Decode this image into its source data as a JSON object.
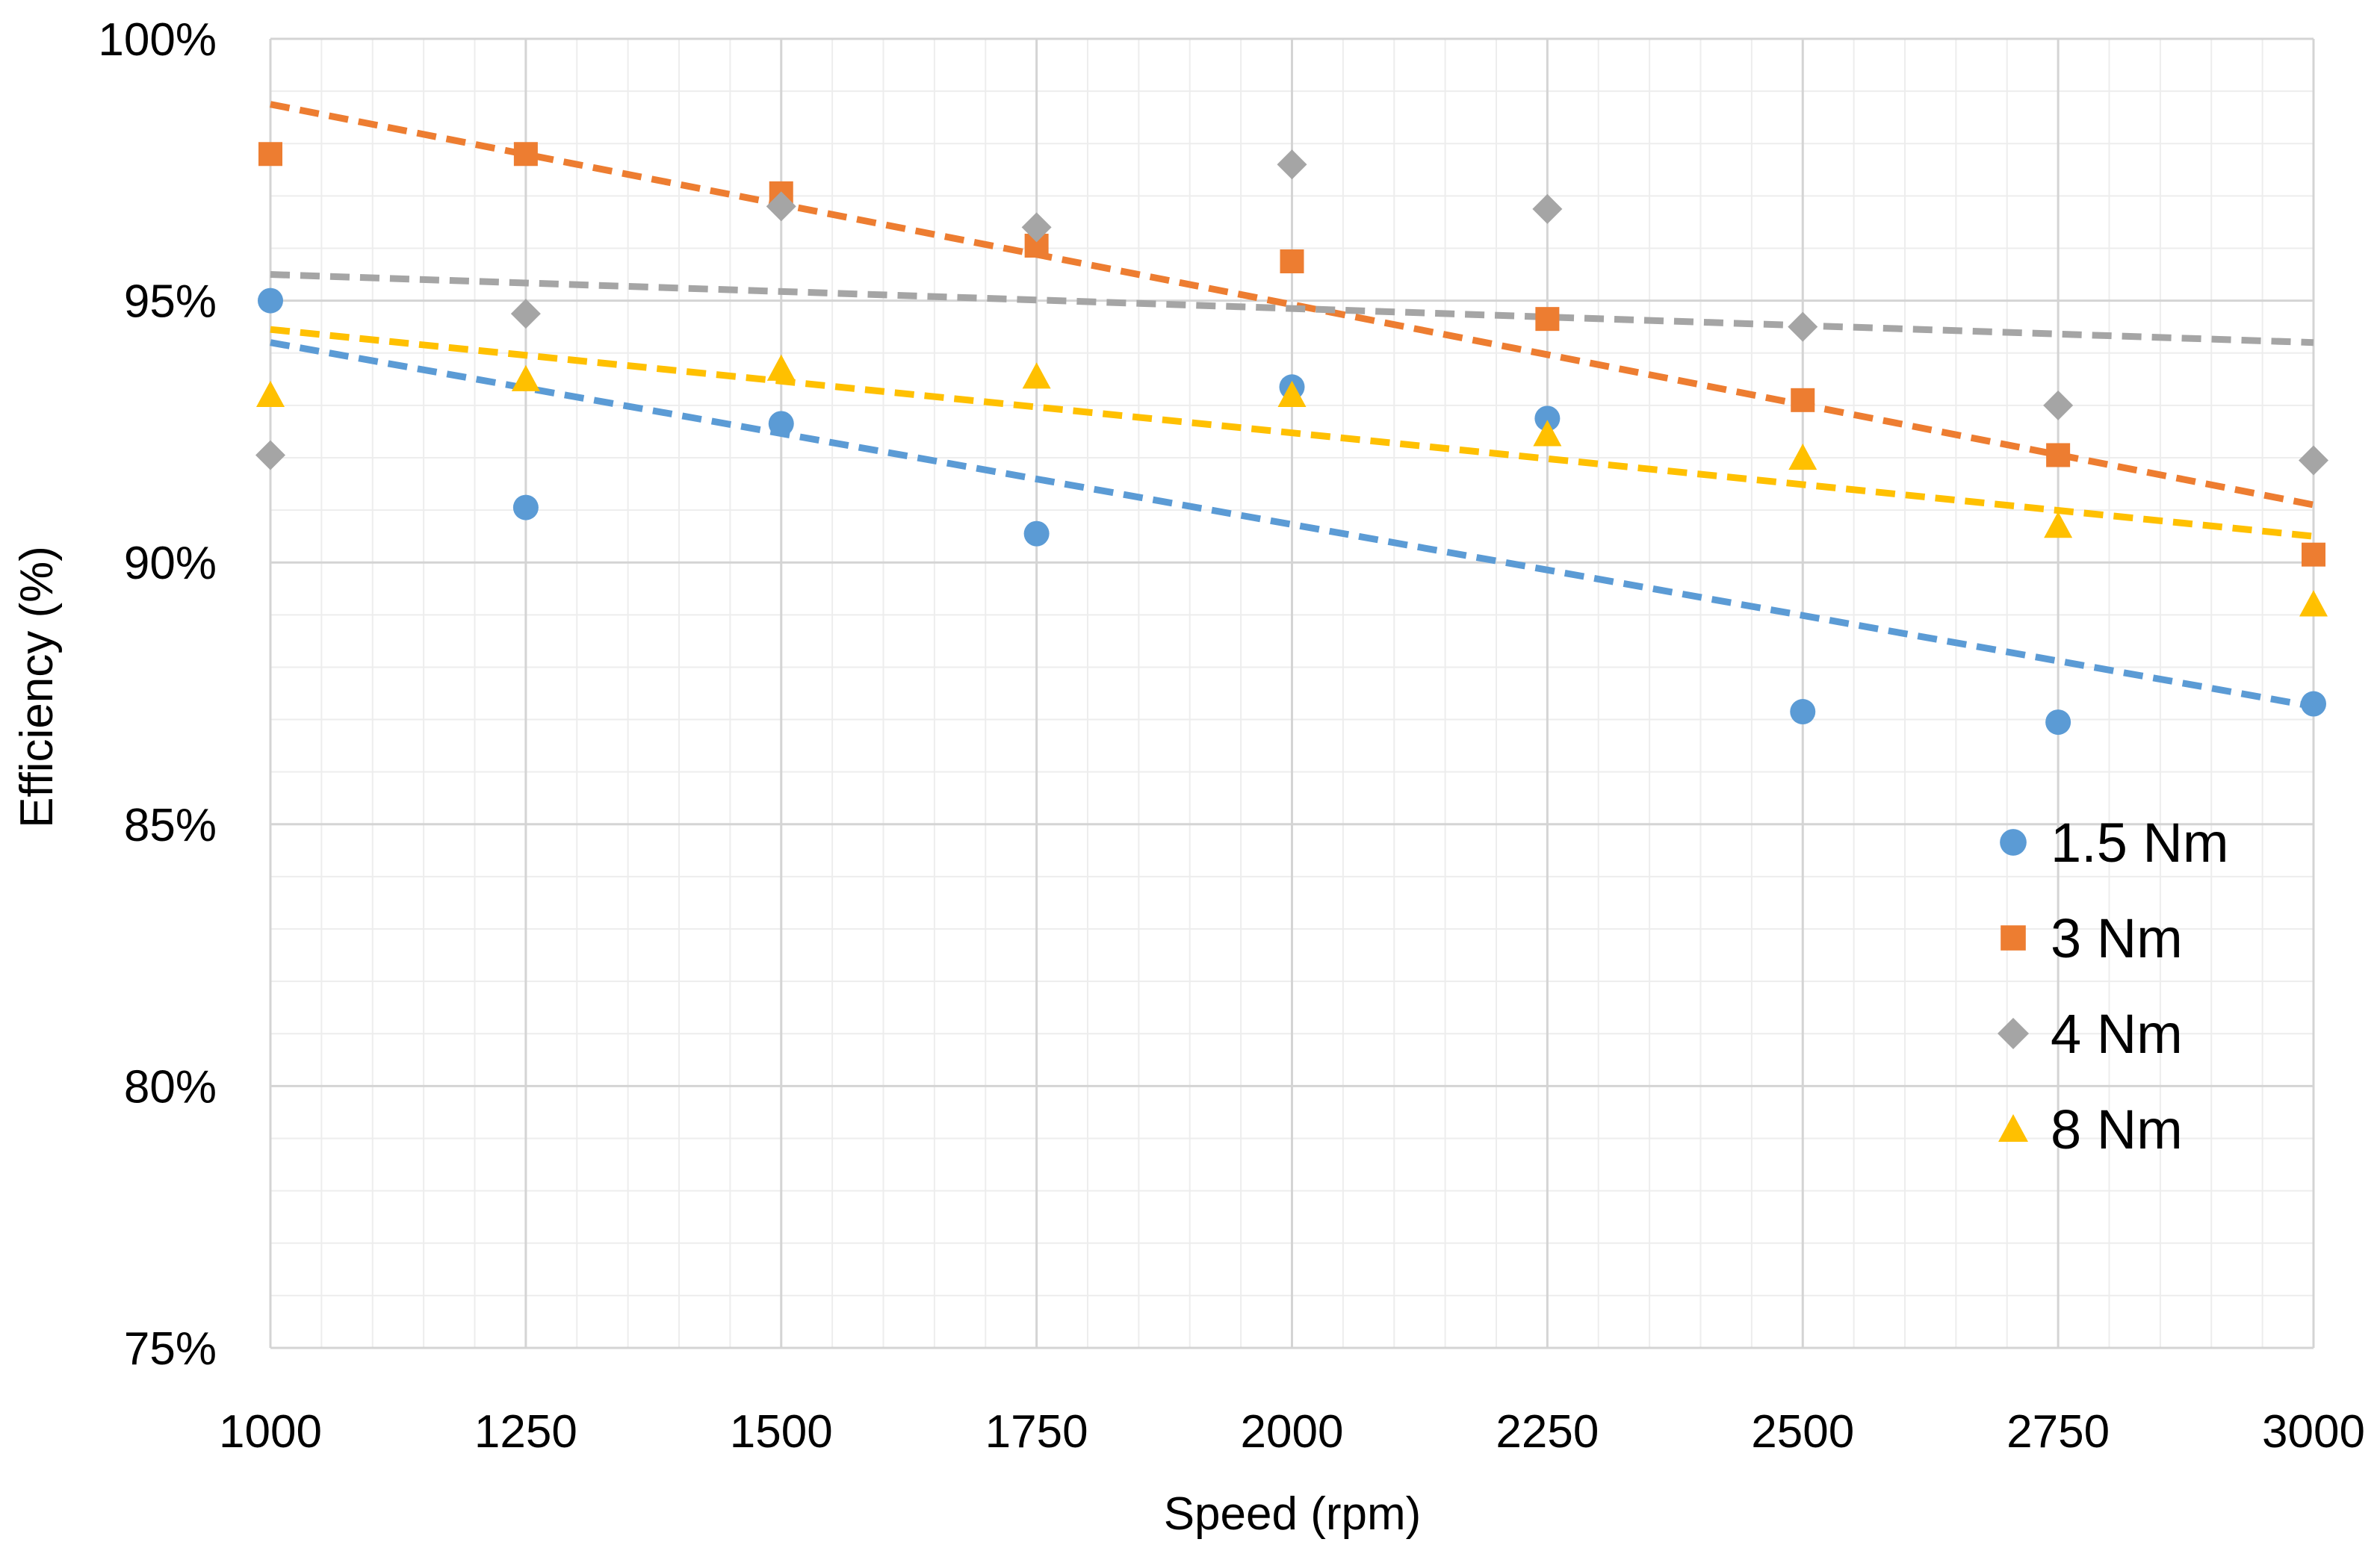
{
  "chart_data": {
    "type": "scatter",
    "title": "",
    "xlabel": "Speed (rpm)",
    "ylabel": "Efficiency (%)",
    "xlim": [
      1000,
      3000
    ],
    "ylim": [
      75,
      100
    ],
    "x_ticks": [
      1000,
      1250,
      1500,
      1750,
      2000,
      2250,
      2500,
      2750,
      3000
    ],
    "x_tick_labels": [
      "1000",
      "1250",
      "1500",
      "1750",
      "2000",
      "2250",
      "2500",
      "2750",
      "3000"
    ],
    "y_ticks": [
      75,
      80,
      85,
      90,
      95,
      100
    ],
    "y_tick_labels": [
      "75%",
      "80%",
      "85%",
      "90%",
      "95%",
      "100%"
    ],
    "grid": true,
    "legend_position": "right-lower",
    "x": [
      1000,
      1250,
      1500,
      1750,
      2000,
      2250,
      2500,
      2750,
      3000
    ],
    "series": [
      {
        "name": "1.5 Nm",
        "marker": "circle",
        "color": "#5B9BD5",
        "values": [
          95.0,
          91.05,
          92.65,
          90.55,
          93.35,
          92.75,
          87.15,
          86.95,
          87.3
        ],
        "trendline": [
          94.2,
          87.25
        ]
      },
      {
        "name": "3 Nm",
        "marker": "square",
        "color": "#ED7D31",
        "values": [
          97.8,
          97.8,
          97.05,
          96.05,
          95.75,
          94.65,
          93.1,
          92.05,
          90.15
        ],
        "trendline": [
          98.75,
          91.1
        ]
      },
      {
        "name": "4 Nm",
        "marker": "diamond",
        "color": "#A5A5A5",
        "values": [
          92.05,
          94.75,
          96.8,
          96.4,
          97.6,
          96.75,
          94.5,
          93.0,
          91.95
        ],
        "trendline": [
          95.5,
          94.2
        ]
      },
      {
        "name": "8 Nm",
        "marker": "triangle",
        "color": "#FFC000",
        "values": [
          93.2,
          93.5,
          93.7,
          93.55,
          93.2,
          92.45,
          92.0,
          90.7,
          89.2
        ],
        "trendline": [
          94.45,
          90.5
        ]
      }
    ]
  }
}
